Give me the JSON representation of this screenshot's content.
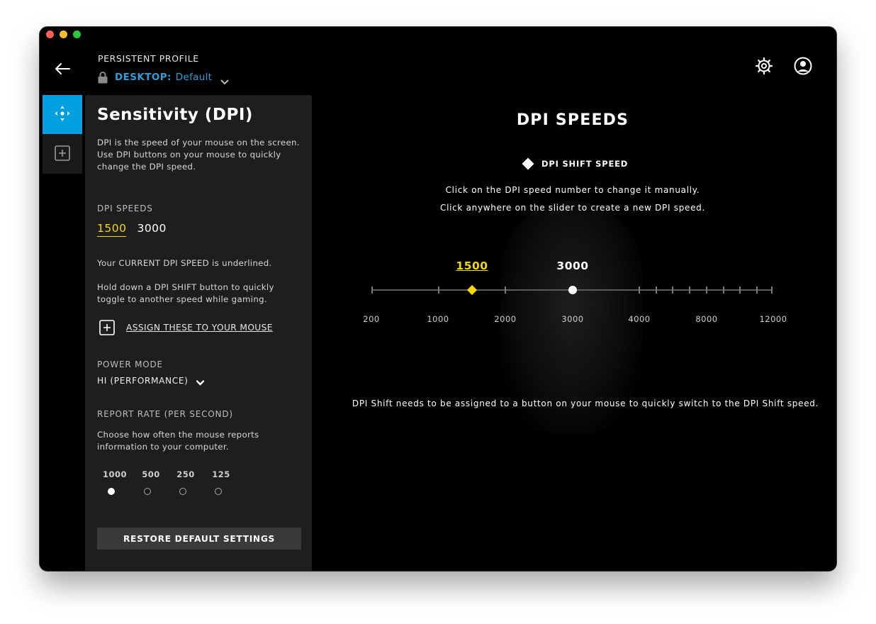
{
  "header": {
    "profile_label": "PERSISTENT PROFILE",
    "profile_key": "DESKTOP:",
    "profile_value": "Default"
  },
  "panel": {
    "title": "Sensitivity (DPI)",
    "description": "DPI is the speed of your mouse on the screen. Use DPI buttons on your mouse to quickly change the DPI speed.",
    "dpi_speeds_label": "DPI SPEEDS",
    "dpi_speeds": [
      {
        "value": "1500",
        "current": true
      },
      {
        "value": "3000",
        "current": false
      }
    ],
    "current_note": "Your CURRENT DPI SPEED is underlined.",
    "shift_note": "Hold down a DPI SHIFT button to quickly toggle to another speed while gaming.",
    "assign_label": "ASSIGN THESE TO YOUR MOUSE",
    "power_mode_label": "POWER MODE",
    "power_mode_value": "HI (PERFORMANCE)",
    "report_rate_label": "REPORT RATE (PER SECOND)",
    "report_rate_desc": "Choose how often the mouse reports information to your computer.",
    "report_rates": [
      {
        "label": "1000",
        "selected": true
      },
      {
        "label": "500",
        "selected": false
      },
      {
        "label": "250",
        "selected": false
      },
      {
        "label": "125",
        "selected": false
      }
    ],
    "restore_label": "RESTORE DEFAULT SETTINGS"
  },
  "main": {
    "title": "DPI SPEEDS",
    "shift_legend": "DPI SHIFT SPEED",
    "instruction_1": "Click on the DPI speed number to change it manually.",
    "instruction_2": "Click anywhere on the slider to create a new DPI speed.",
    "slider": {
      "scale_labels": [
        "200",
        "1000",
        "2000",
        "3000",
        "4000",
        "8000",
        "12000"
      ],
      "current_dpi": "1500",
      "other_dpi": "3000"
    },
    "shift_assign_note": "DPI Shift needs to be assigned to a button on your mouse to quickly switch to the DPI Shift speed."
  },
  "colors": {
    "accent_blue": "#00a0e0",
    "profile_blue": "#2f9fd8",
    "current_yellow": "#f5d800",
    "panel_bg": "#1e1e1f",
    "window_bg": "#000000"
  },
  "icons": {
    "back": "arrow-left-icon",
    "lock": "lock-icon",
    "settings": "gear-icon",
    "account": "account-icon",
    "tab_pointer": "pointer-move-icon",
    "tab_add": "plus-square-icon",
    "assign": "plus-square-icon"
  }
}
